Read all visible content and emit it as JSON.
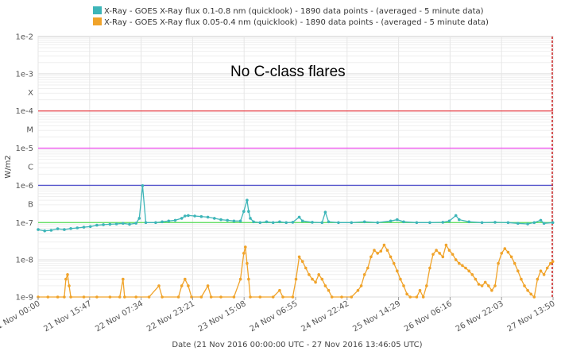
{
  "chart_data": {
    "type": "line",
    "y_scale": "log",
    "ylim": [
      1e-09,
      0.01
    ],
    "ylabel": "W/m2",
    "xlabel": "Date (21 Nov 2016 00:00:00 UTC - 27 Nov 2016 13:46:05 UTC)",
    "y_ticks": [
      {
        "label": "1e-2",
        "value": 0.01
      },
      {
        "label": "1e-3",
        "value": 0.001
      },
      {
        "label": "X",
        "value": 0.000316
      },
      {
        "label": "1e-4",
        "value": 0.0001
      },
      {
        "label": "M",
        "value": 3.16e-05
      },
      {
        "label": "1e-5",
        "value": 1e-05
      },
      {
        "label": "C",
        "value": 3.16e-06
      },
      {
        "label": "1e-6",
        "value": 1e-06
      },
      {
        "label": "B",
        "value": 3.16e-07
      },
      {
        "label": "1e-7",
        "value": 1e-07
      },
      {
        "label": "1e-8",
        "value": 1e-08
      },
      {
        "label": "1e-9",
        "value": 1e-09
      }
    ],
    "x_ticks": [
      "21 Nov 00:00",
      "21 Nov 15:47",
      "22 Nov 07:34",
      "22 Nov 23:21",
      "23 Nov 15:08",
      "24 Nov 06:55",
      "24 Nov 22:42",
      "25 Nov 14:29",
      "26 Nov 06:16",
      "26 Nov 22:03",
      "27 Nov 13:50"
    ],
    "x_range_hours": [
      0,
      157.77
    ],
    "threshold_lines": [
      {
        "level": "X",
        "value": 0.0001,
        "color": "#e8444c"
      },
      {
        "level": "M",
        "value": 1e-05,
        "color": "#ee55ee"
      },
      {
        "level": "C",
        "value": 1e-06,
        "color": "#5555cc"
      },
      {
        "level": "B",
        "value": 1e-07,
        "color": "#55dd55"
      }
    ],
    "annotation": "No C-class flares",
    "legend_position": "top-center",
    "series": [
      {
        "name": "X-Ray - GOES X-Ray flux 0.1-0.8 nm (quicklook) - 1890 data points -  (averaged - 5 minute data)",
        "color": "#3db5b8",
        "points": [
          [
            0,
            6.5e-08
          ],
          [
            2,
            6e-08
          ],
          [
            4,
            6.2e-08
          ],
          [
            6,
            6.8e-08
          ],
          [
            8,
            6.5e-08
          ],
          [
            10,
            6.9e-08
          ],
          [
            12,
            7.2e-08
          ],
          [
            14,
            7.5e-08
          ],
          [
            16,
            7.8e-08
          ],
          [
            18,
            8.5e-08
          ],
          [
            20,
            8.8e-08
          ],
          [
            22,
            9e-08
          ],
          [
            24,
            9.2e-08
          ],
          [
            26,
            9.5e-08
          ],
          [
            28,
            9e-08
          ],
          [
            30,
            9.6e-08
          ],
          [
            31,
            1.3e-07
          ],
          [
            32,
            9.8e-07
          ],
          [
            33,
            1e-07
          ],
          [
            36,
            1e-07
          ],
          [
            38,
            1.05e-07
          ],
          [
            40,
            1.1e-07
          ],
          [
            42,
            1.15e-07
          ],
          [
            44,
            1.3e-07
          ],
          [
            45,
            1.5e-07
          ],
          [
            46,
            1.55e-07
          ],
          [
            48,
            1.5e-07
          ],
          [
            50,
            1.45e-07
          ],
          [
            52,
            1.4e-07
          ],
          [
            54,
            1.3e-07
          ],
          [
            56,
            1.2e-07
          ],
          [
            58,
            1.15e-07
          ],
          [
            60,
            1.1e-07
          ],
          [
            62,
            1.1e-07
          ],
          [
            63,
            2e-07
          ],
          [
            64,
            4e-07
          ],
          [
            64.5,
            2e-07
          ],
          [
            65,
            1.3e-07
          ],
          [
            66,
            1.05e-07
          ],
          [
            68,
            1e-07
          ],
          [
            70,
            1.05e-07
          ],
          [
            72,
            1e-07
          ],
          [
            74,
            1.05e-07
          ],
          [
            76,
            1e-07
          ],
          [
            78,
            1.02e-07
          ],
          [
            80,
            1.4e-07
          ],
          [
            81,
            1.1e-07
          ],
          [
            84,
            1.02e-07
          ],
          [
            87,
            1e-07
          ],
          [
            88,
            1.9e-07
          ],
          [
            89,
            1.05e-07
          ],
          [
            92,
            1e-07
          ],
          [
            96,
            1e-07
          ],
          [
            100,
            1.05e-07
          ],
          [
            104,
            1e-07
          ],
          [
            108,
            1.1e-07
          ],
          [
            110,
            1.2e-07
          ],
          [
            112,
            1.05e-07
          ],
          [
            116,
            1e-07
          ],
          [
            120,
            1e-07
          ],
          [
            124,
            1.02e-07
          ],
          [
            126,
            1.1e-07
          ],
          [
            128,
            1.55e-07
          ],
          [
            129,
            1.2e-07
          ],
          [
            132,
            1.05e-07
          ],
          [
            136,
            1e-07
          ],
          [
            140,
            1.02e-07
          ],
          [
            144,
            1e-07
          ],
          [
            147,
            9.5e-08
          ],
          [
            150,
            9.2e-08
          ],
          [
            152,
            1e-07
          ],
          [
            154,
            1.15e-07
          ],
          [
            155,
            9.5e-08
          ],
          [
            157.7,
            1e-07
          ]
        ]
      },
      {
        "name": "X-Ray - GOES X-Ray flux 0.05-0.4 nm (quicklook) - 1890 data points -  (averaged - 5 minute data)",
        "color": "#f0a32a",
        "points": [
          [
            0,
            1e-09
          ],
          [
            3,
            1e-09
          ],
          [
            6,
            1e-09
          ],
          [
            8,
            1e-09
          ],
          [
            8.5,
            3e-09
          ],
          [
            9,
            4e-09
          ],
          [
            9.5,
            2e-09
          ],
          [
            10,
            1e-09
          ],
          [
            14,
            1e-09
          ],
          [
            18,
            1e-09
          ],
          [
            22,
            1e-09
          ],
          [
            25,
            1e-09
          ],
          [
            26,
            3e-09
          ],
          [
            26.5,
            1e-09
          ],
          [
            30,
            1e-09
          ],
          [
            34,
            1e-09
          ],
          [
            37,
            2e-09
          ],
          [
            38,
            1e-09
          ],
          [
            43,
            1e-09
          ],
          [
            44,
            2e-09
          ],
          [
            45,
            3e-09
          ],
          [
            46,
            2e-09
          ],
          [
            47,
            1e-09
          ],
          [
            50,
            1e-09
          ],
          [
            52,
            2e-09
          ],
          [
            53,
            1e-09
          ],
          [
            56,
            1e-09
          ],
          [
            60,
            1e-09
          ],
          [
            62,
            3e-09
          ],
          [
            63,
            1.5e-08
          ],
          [
            63.5,
            2.2e-08
          ],
          [
            64,
            8e-09
          ],
          [
            64.5,
            3e-09
          ],
          [
            65,
            1e-09
          ],
          [
            68,
            1e-09
          ],
          [
            72,
            1e-09
          ],
          [
            74,
            1.5e-09
          ],
          [
            75,
            1e-09
          ],
          [
            78,
            1e-09
          ],
          [
            79,
            3e-09
          ],
          [
            80,
            1.2e-08
          ],
          [
            81,
            9e-09
          ],
          [
            82,
            6e-09
          ],
          [
            83,
            4e-09
          ],
          [
            84,
            3e-09
          ],
          [
            85,
            2.5e-09
          ],
          [
            86,
            4e-09
          ],
          [
            87,
            3e-09
          ],
          [
            88,
            2e-09
          ],
          [
            89,
            1.5e-09
          ],
          [
            90,
            1e-09
          ],
          [
            93,
            1e-09
          ],
          [
            96,
            1e-09
          ],
          [
            98,
            1.5e-09
          ],
          [
            99,
            2e-09
          ],
          [
            100,
            4e-09
          ],
          [
            101,
            6e-09
          ],
          [
            102,
            1.2e-08
          ],
          [
            103,
            1.8e-08
          ],
          [
            104,
            1.5e-08
          ],
          [
            105,
            1.7e-08
          ],
          [
            106,
            2.5e-08
          ],
          [
            107,
            1.8e-08
          ],
          [
            108,
            1.2e-08
          ],
          [
            109,
            8e-09
          ],
          [
            110,
            5e-09
          ],
          [
            111,
            3e-09
          ],
          [
            112,
            2e-09
          ],
          [
            113,
            1.2e-09
          ],
          [
            114,
            1e-09
          ],
          [
            116,
            1e-09
          ],
          [
            117,
            1.5e-09
          ],
          [
            118,
            1e-09
          ],
          [
            119,
            2e-09
          ],
          [
            120,
            6e-09
          ],
          [
            121,
            1.4e-08
          ],
          [
            122,
            1.8e-08
          ],
          [
            123,
            1.5e-08
          ],
          [
            124,
            1.2e-08
          ],
          [
            125,
            2.5e-08
          ],
          [
            126,
            1.8e-08
          ],
          [
            127,
            1.4e-08
          ],
          [
            128,
            1e-08
          ],
          [
            129,
            8e-09
          ],
          [
            130,
            7e-09
          ],
          [
            131,
            6e-09
          ],
          [
            132,
            5e-09
          ],
          [
            133,
            4e-09
          ],
          [
            134,
            3e-09
          ],
          [
            135,
            2.2e-09
          ],
          [
            136,
            2e-09
          ],
          [
            137,
            2.5e-09
          ],
          [
            138,
            2e-09
          ],
          [
            139,
            1.5e-09
          ],
          [
            140,
            2e-09
          ],
          [
            141,
            8e-09
          ],
          [
            142,
            1.5e-08
          ],
          [
            143,
            2e-08
          ],
          [
            144,
            1.6e-08
          ],
          [
            145,
            1.2e-08
          ],
          [
            146,
            8e-09
          ],
          [
            147,
            5e-09
          ],
          [
            148,
            3e-09
          ],
          [
            149,
            2e-09
          ],
          [
            150,
            1.5e-09
          ],
          [
            151,
            1.2e-09
          ],
          [
            152,
            1e-09
          ],
          [
            153,
            3e-09
          ],
          [
            154,
            5e-09
          ],
          [
            155,
            4e-09
          ],
          [
            156,
            6e-09
          ],
          [
            157,
            8e-09
          ],
          [
            157.7,
            9e-09
          ]
        ]
      }
    ]
  }
}
